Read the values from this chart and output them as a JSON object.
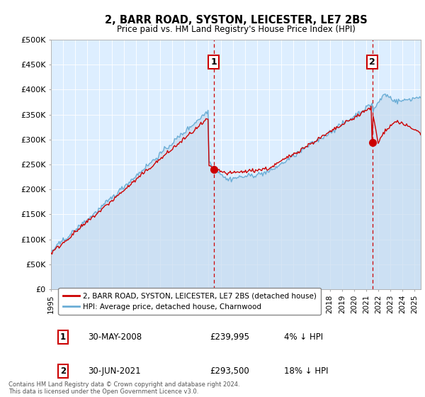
{
  "title": "2, BARR ROAD, SYSTON, LEICESTER, LE7 2BS",
  "subtitle": "Price paid vs. HM Land Registry's House Price Index (HPI)",
  "ylabel_ticks": [
    "£0",
    "£50K",
    "£100K",
    "£150K",
    "£200K",
    "£250K",
    "£300K",
    "£350K",
    "£400K",
    "£450K",
    "£500K"
  ],
  "ytick_values": [
    0,
    50000,
    100000,
    150000,
    200000,
    250000,
    300000,
    350000,
    400000,
    450000,
    500000
  ],
  "ylim": [
    0,
    500000
  ],
  "xlim_start": 1995.0,
  "xlim_end": 2025.5,
  "hpi_color": "#6baed6",
  "hpi_fill_color": "#c6dbef",
  "sold_color": "#cc0000",
  "marker1_date": 2008.41,
  "marker1_price": 239995,
  "marker1_label": "1",
  "marker2_date": 2021.5,
  "marker2_price": 293500,
  "marker2_label": "2",
  "vline_color": "#cc0000",
  "vline_style": "--",
  "legend_entry1": "2, BARR ROAD, SYSTON, LEICESTER, LE7 2BS (detached house)",
  "legend_entry2": "HPI: Average price, detached house, Charnwood",
  "table_row1": [
    "1",
    "30-MAY-2008",
    "£239,995",
    "4% ↓ HPI"
  ],
  "table_row2": [
    "2",
    "30-JUN-2021",
    "£293,500",
    "18% ↓ HPI"
  ],
  "footer": "Contains HM Land Registry data © Crown copyright and database right 2024.\nThis data is licensed under the Open Government Licence v3.0.",
  "bg_color": "#ffffff",
  "chart_bg_color": "#ddeeff",
  "grid_color": "#ffffff"
}
